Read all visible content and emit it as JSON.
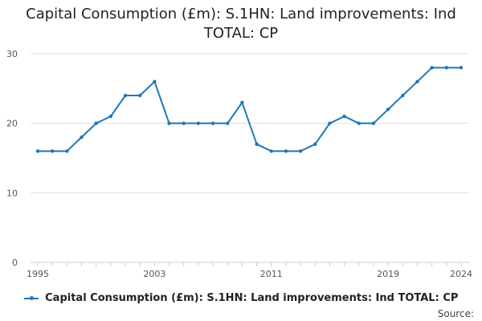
{
  "chart_data": {
    "type": "line",
    "title_lines": [
      "Capital Consumption (£m): S.1HN: Land improvements: Ind",
      "TOTAL: CP"
    ],
    "xlabel": "",
    "ylabel": "",
    "x": [
      1995,
      1996,
      1997,
      1998,
      1999,
      2000,
      2001,
      2002,
      2003,
      2004,
      2005,
      2006,
      2007,
      2008,
      2009,
      2010,
      2011,
      2012,
      2013,
      2014,
      2015,
      2016,
      2017,
      2018,
      2019,
      2020,
      2021,
      2022,
      2023,
      2024
    ],
    "series": [
      {
        "name": "Capital Consumption (£m): S.1HN: Land improvements: Ind TOTAL: CP",
        "color": "#1f77b4",
        "values": [
          16,
          16,
          16,
          18,
          20,
          21,
          24,
          24,
          26,
          20,
          20,
          20,
          20,
          20,
          23,
          17,
          16,
          16,
          16,
          17,
          20,
          21,
          20,
          20,
          22,
          24,
          26,
          28,
          28,
          28
        ]
      }
    ],
    "xlim": [
      1995,
      2024
    ],
    "ylim": [
      0,
      30
    ],
    "x_ticks": [
      1995,
      2003,
      2011,
      2019,
      2024
    ],
    "y_ticks": [
      0,
      10,
      20,
      30
    ],
    "grid": true,
    "legend_position": "bottom"
  },
  "legend": {
    "label": "Capital Consumption (£m): S.1HN: Land improvements: Ind TOTAL: CP"
  },
  "source": {
    "label": "Source:"
  }
}
